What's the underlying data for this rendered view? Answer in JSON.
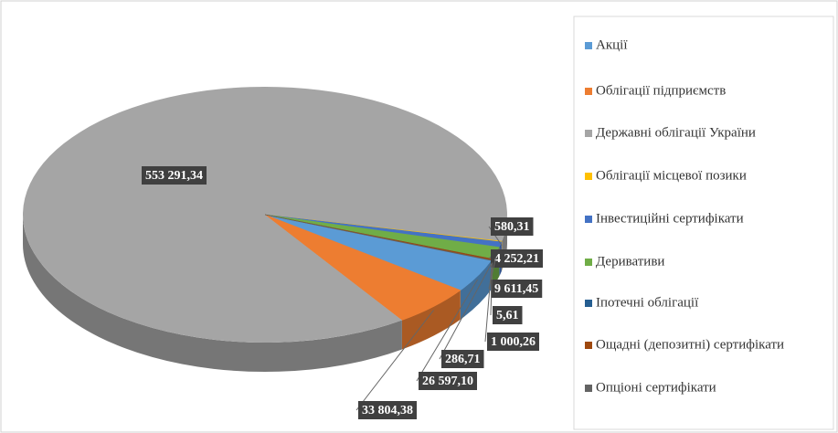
{
  "chart_data": {
    "type": "pie3d",
    "categories": [
      "Акції",
      "Облігації підприємств",
      "Державні облігації України",
      "Облігації місцевої позики",
      "Інвестиційні сертифікати",
      "Деривативи",
      "Іпотечні облігації",
      "Ощадні (депозитні) сертифікати",
      "Опціоні сертифікати"
    ],
    "values": [
      26597.1,
      33804.38,
      553291.34,
      580.31,
      4252.21,
      9611.45,
      5.61,
      1000.26,
      286.71
    ],
    "value_labels": [
      "26 597,10",
      "33 804,38",
      "553 291,34",
      "580,31",
      "4 252,21",
      "9 611,45",
      "5,61",
      "1 000,26",
      "286,71"
    ],
    "colors": [
      "#5b9bd5",
      "#ed7d31",
      "#a5a5a5",
      "#ffc000",
      "#4472c4",
      "#70ad47",
      "#255e91",
      "#9e480e",
      "#636363"
    ],
    "legend": "right"
  }
}
